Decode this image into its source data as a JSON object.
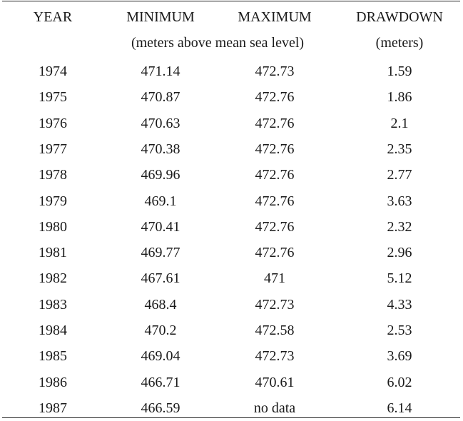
{
  "table": {
    "headers": {
      "year": "YEAR",
      "minimum": "MINIMUM",
      "maximum": "MAXIMUM",
      "drawdown": "DRAWDOWN"
    },
    "units": {
      "elevation": "(meters above mean sea level)",
      "drawdown": "(meters)"
    },
    "rows": [
      {
        "year": "1974",
        "minimum": "471.14",
        "maximum": "472.73",
        "drawdown": "1.59"
      },
      {
        "year": "1975",
        "minimum": "470.87",
        "maximum": "472.76",
        "drawdown": "1.86"
      },
      {
        "year": "1976",
        "minimum": "470.63",
        "maximum": "472.76",
        "drawdown": "2.1"
      },
      {
        "year": "1977",
        "minimum": "470.38",
        "maximum": "472.76",
        "drawdown": "2.35"
      },
      {
        "year": "1978",
        "minimum": "469.96",
        "maximum": "472.76",
        "drawdown": "2.77"
      },
      {
        "year": "1979",
        "minimum": "469.1",
        "maximum": "472.76",
        "drawdown": "3.63"
      },
      {
        "year": "1980",
        "minimum": "470.41",
        "maximum": "472.76",
        "drawdown": "2.32"
      },
      {
        "year": "1981",
        "minimum": "469.77",
        "maximum": "472.76",
        "drawdown": "2.96"
      },
      {
        "year": "1982",
        "minimum": "467.61",
        "maximum": "471",
        "drawdown": "5.12"
      },
      {
        "year": "1983",
        "minimum": "468.4",
        "maximum": "472.73",
        "drawdown": "4.33"
      },
      {
        "year": "1984",
        "minimum": "470.2",
        "maximum": "472.58",
        "drawdown": "2.53"
      },
      {
        "year": "1985",
        "minimum": "469.04",
        "maximum": "472.73",
        "drawdown": "3.69"
      },
      {
        "year": "1986",
        "minimum": "466.71",
        "maximum": "470.61",
        "drawdown": "6.02"
      },
      {
        "year": "1987",
        "minimum": "466.59",
        "maximum": "no data",
        "drawdown": "6.14"
      }
    ]
  }
}
